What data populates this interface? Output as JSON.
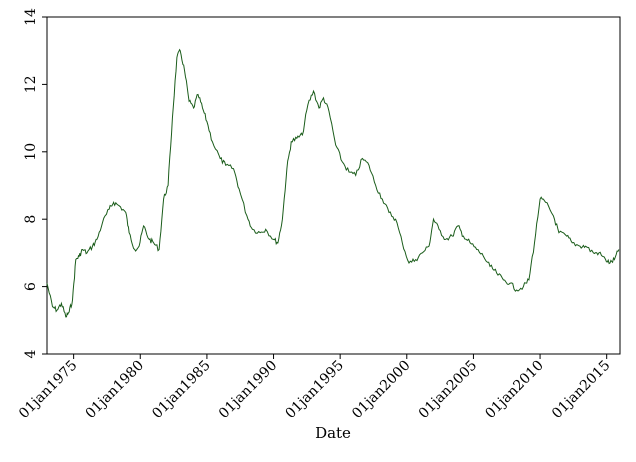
{
  "chart_data": {
    "type": "line",
    "xlabel": "Date",
    "ylabel": "",
    "title": "",
    "xlim": [
      "1973-01-01",
      "2016-01-01"
    ],
    "ylim": [
      4,
      14
    ],
    "yticks": [
      4,
      6,
      8,
      10,
      12,
      14
    ],
    "xticks": [
      {
        "date": "1975-01-01",
        "label": "01jan1975"
      },
      {
        "date": "1980-01-01",
        "label": "01jan1980"
      },
      {
        "date": "1985-01-01",
        "label": "01jan1985"
      },
      {
        "date": "1990-01-01",
        "label": "01jan1990"
      },
      {
        "date": "1995-01-01",
        "label": "01jan1995"
      },
      {
        "date": "2000-01-01",
        "label": "01jan2000"
      },
      {
        "date": "2005-01-01",
        "label": "01jan2005"
      },
      {
        "date": "2010-01-01",
        "label": "01jan2010"
      },
      {
        "date": "2015-01-01",
        "label": "01jan2015"
      }
    ],
    "grid": false,
    "line_color": "#1a5c1a",
    "series": [
      {
        "points": [
          [
            "1973-01-01",
            6.1
          ],
          [
            "1973-06-01",
            5.4
          ],
          [
            "1973-10-01",
            5.3
          ],
          [
            "1974-02-01",
            5.5
          ],
          [
            "1974-06-01",
            5.1
          ],
          [
            "1974-09-01",
            5.25
          ],
          [
            "1974-12-01",
            5.6
          ],
          [
            "1975-03-01",
            6.8
          ],
          [
            "1975-06-01",
            6.9
          ],
          [
            "1975-09-01",
            7.1
          ],
          [
            "1976-01-01",
            7.0
          ],
          [
            "1976-06-01",
            7.2
          ],
          [
            "1976-10-01",
            7.4
          ],
          [
            "1977-03-01",
            7.9
          ],
          [
            "1977-09-01",
            8.3
          ],
          [
            "1978-01-01",
            8.5
          ],
          [
            "1978-06-01",
            8.4
          ],
          [
            "1978-12-01",
            8.2
          ],
          [
            "1979-03-01",
            7.6
          ],
          [
            "1979-08-01",
            7.1
          ],
          [
            "1979-12-01",
            7.2
          ],
          [
            "1980-04-01",
            7.8
          ],
          [
            "1980-09-01",
            7.4
          ],
          [
            "1981-01-01",
            7.3
          ],
          [
            "1981-06-01",
            7.1
          ],
          [
            "1981-10-01",
            8.6
          ],
          [
            "1982-02-01",
            9.0
          ],
          [
            "1982-06-01",
            11.0
          ],
          [
            "1982-10-01",
            12.8
          ],
          [
            "1983-01-01",
            13.0
          ],
          [
            "1983-05-01",
            12.4
          ],
          [
            "1983-09-01",
            11.5
          ],
          [
            "1984-01-01",
            11.3
          ],
          [
            "1984-05-01",
            11.7
          ],
          [
            "1984-09-01",
            11.3
          ],
          [
            "1985-01-01",
            10.9
          ],
          [
            "1985-06-01",
            10.3
          ],
          [
            "1986-01-01",
            9.8
          ],
          [
            "1986-06-01",
            9.6
          ],
          [
            "1987-01-01",
            9.5
          ],
          [
            "1987-06-01",
            8.9
          ],
          [
            "1988-01-01",
            8.1
          ],
          [
            "1988-06-01",
            7.7
          ],
          [
            "1989-01-01",
            7.6
          ],
          [
            "1989-06-01",
            7.7
          ],
          [
            "1990-01-01",
            7.4
          ],
          [
            "1990-05-01",
            7.3
          ],
          [
            "1990-09-01",
            8.0
          ],
          [
            "1991-01-01",
            9.5
          ],
          [
            "1991-05-01",
            10.3
          ],
          [
            "1991-10-01",
            10.4
          ],
          [
            "1992-03-01",
            10.5
          ],
          [
            "1992-08-01",
            11.4
          ],
          [
            "1993-01-01",
            11.8
          ],
          [
            "1993-06-01",
            11.3
          ],
          [
            "1993-10-01",
            11.6
          ],
          [
            "1994-03-01",
            11.2
          ],
          [
            "1994-09-01",
            10.2
          ],
          [
            "1995-03-01",
            9.7
          ],
          [
            "1995-09-01",
            9.4
          ],
          [
            "1996-03-01",
            9.3
          ],
          [
            "1996-09-01",
            9.8
          ],
          [
            "1997-03-01",
            9.6
          ],
          [
            "1997-09-01",
            9.0
          ],
          [
            "1998-03-01",
            8.6
          ],
          [
            "1998-09-01",
            8.2
          ],
          [
            "1999-03-01",
            8.0
          ],
          [
            "1999-09-01",
            7.3
          ],
          [
            "2000-03-01",
            6.7
          ],
          [
            "2000-09-01",
            6.8
          ],
          [
            "2001-03-01",
            7.0
          ],
          [
            "2001-09-01",
            7.2
          ],
          [
            "2002-01-01",
            8.0
          ],
          [
            "2002-06-01",
            7.7
          ],
          [
            "2002-12-01",
            7.4
          ],
          [
            "2003-06-01",
            7.5
          ],
          [
            "2003-11-01",
            7.8
          ],
          [
            "2004-04-01",
            7.5
          ],
          [
            "2004-10-01",
            7.3
          ],
          [
            "2005-04-01",
            7.1
          ],
          [
            "2005-10-01",
            6.9
          ],
          [
            "2006-04-01",
            6.6
          ],
          [
            "2006-10-01",
            6.4
          ],
          [
            "2007-04-01",
            6.2
          ],
          [
            "2007-10-01",
            6.1
          ],
          [
            "2008-04-01",
            5.9
          ],
          [
            "2008-10-01",
            6.0
          ],
          [
            "2009-03-01",
            6.2
          ],
          [
            "2009-08-01",
            7.3
          ],
          [
            "2010-01-01",
            8.6
          ],
          [
            "2010-06-01",
            8.5
          ],
          [
            "2011-01-01",
            8.1
          ],
          [
            "2011-06-01",
            7.6
          ],
          [
            "2012-01-01",
            7.5
          ],
          [
            "2012-06-01",
            7.3
          ],
          [
            "2013-01-01",
            7.2
          ],
          [
            "2013-06-01",
            7.2
          ],
          [
            "2014-01-01",
            7.0
          ],
          [
            "2014-06-01",
            7.0
          ],
          [
            "2014-12-01",
            6.8
          ],
          [
            "2015-04-01",
            6.7
          ],
          [
            "2015-08-01",
            6.8
          ],
          [
            "2015-12-01",
            7.1
          ]
        ]
      }
    ]
  }
}
